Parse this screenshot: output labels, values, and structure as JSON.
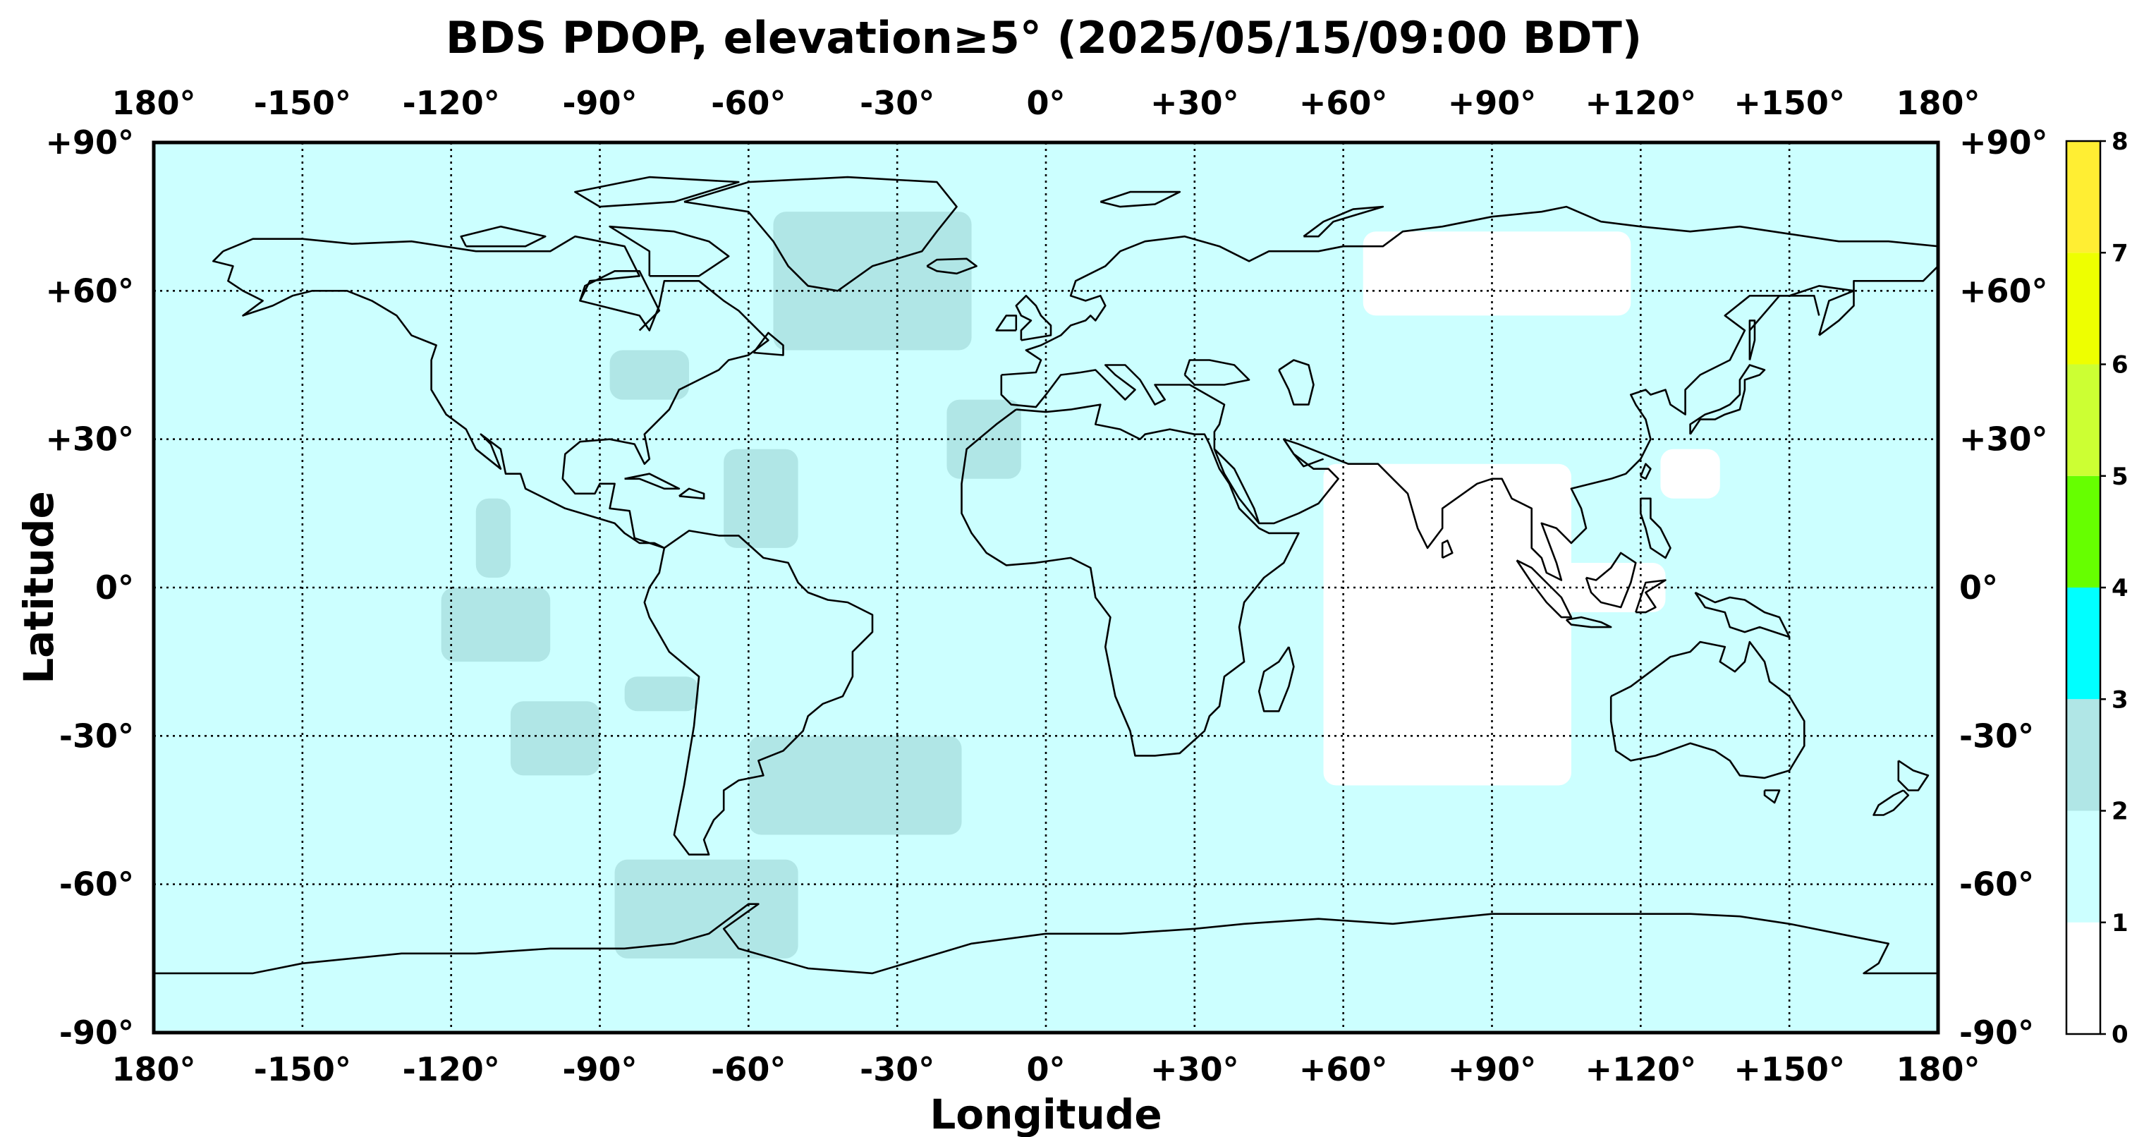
{
  "title": "BDS PDOP, elevation≥5° (2025/05/15/09:00 BDT)",
  "chart_data": {
    "type": "heatmap",
    "title": "BDS PDOP, elevation≥5° (2025/05/15/09:00 BDT)",
    "xlabel": "Longitude",
    "ylabel": "Latitude",
    "xlim": [
      -180,
      180
    ],
    "ylim": [
      -90,
      90
    ],
    "x_ticks": [
      -180,
      -150,
      -120,
      -90,
      -60,
      -30,
      0,
      30,
      60,
      90,
      120,
      150,
      180
    ],
    "x_tick_labels": [
      "180°",
      "-150°",
      "-120°",
      "-90°",
      "-60°",
      "-30°",
      "0°",
      "+30°",
      "+60°",
      "+90°",
      "+120°",
      "+150°",
      "180°"
    ],
    "y_ticks": [
      90,
      60,
      30,
      0,
      -30,
      -60,
      -90
    ],
    "y_tick_labels": [
      "+90°",
      "+60°",
      "+30°",
      "0°",
      "-30°",
      "-60°",
      "-90°"
    ],
    "grid": "dotted",
    "background_value_range": [
      1,
      2
    ],
    "colorbar": {
      "ticks": [
        0,
        1,
        2,
        3,
        4,
        5,
        6,
        7,
        8
      ],
      "tick_labels": [
        "0",
        "1",
        "2",
        "3",
        "4",
        "5",
        "6",
        "7",
        "8"
      ],
      "bins": [
        {
          "range": [
            0,
            1
          ],
          "color": "#ffffff"
        },
        {
          "range": [
            1,
            2
          ],
          "color": "#ccffff"
        },
        {
          "range": [
            2,
            3
          ],
          "color": "#b0e6e6"
        },
        {
          "range": [
            3,
            4
          ],
          "color": "#00ffff"
        },
        {
          "range": [
            4,
            5
          ],
          "color": "#66ff00"
        },
        {
          "range": [
            5,
            6
          ],
          "color": "#ccff33"
        },
        {
          "range": [
            6,
            7
          ],
          "color": "#eeff00"
        },
        {
          "range": [
            7,
            8
          ],
          "color": "#ffee33"
        }
      ]
    },
    "regions": [
      {
        "label": "PDOP 2–3 over Greenland / North Atlantic",
        "bin": [
          2,
          3
        ],
        "lon": [
          -55,
          -15
        ],
        "lat": [
          48,
          76
        ]
      },
      {
        "label": "PDOP 2–3 over Great Lakes",
        "bin": [
          2,
          3
        ],
        "lon": [
          -88,
          -72
        ],
        "lat": [
          38,
          48
        ]
      },
      {
        "label": "PDOP 2–3 North Atlantic",
        "bin": [
          2,
          3
        ],
        "lon": [
          -20,
          -5
        ],
        "lat": [
          22,
          38
        ]
      },
      {
        "label": "PDOP 2–3 Central Atlantic",
        "bin": [
          2,
          3
        ],
        "lon": [
          -65,
          -50
        ],
        "lat": [
          8,
          28
        ]
      },
      {
        "label": "PDOP 2–3 East Pacific near equator",
        "bin": [
          2,
          3
        ],
        "lon": [
          -122,
          -100
        ],
        "lat": [
          -15,
          0
        ]
      },
      {
        "label": "PDOP 2–3 South Pacific",
        "bin": [
          2,
          3
        ],
        "lon": [
          -108,
          -90
        ],
        "lat": [
          -38,
          -23
        ]
      },
      {
        "label": "PDOP 2–3 Eastern Pacific",
        "bin": [
          2,
          3
        ],
        "lon": [
          -115,
          -108
        ],
        "lat": [
          2,
          18
        ]
      },
      {
        "label": "PDOP 2–3 off Chile",
        "bin": [
          2,
          3
        ],
        "lon": [
          -85,
          -70
        ],
        "lat": [
          -25,
          -18
        ]
      },
      {
        "label": "PDOP 2–3 South Atlantic",
        "bin": [
          2,
          3
        ],
        "lon": [
          -60,
          -17
        ],
        "lat": [
          -50,
          -30
        ]
      },
      {
        "label": "PDOP 2–3 Drake Passage / Antarctic Peninsula",
        "bin": [
          2,
          3
        ],
        "lon": [
          -87,
          -50
        ],
        "lat": [
          -75,
          -55
        ]
      },
      {
        "label": "PDOP 0–1 Indian Ocean",
        "bin": [
          0,
          1
        ],
        "lon": [
          56,
          106
        ],
        "lat": [
          -40,
          25
        ]
      },
      {
        "label": "PDOP 0–1 Siberia",
        "bin": [
          0,
          1
        ],
        "lon": [
          64,
          118
        ],
        "lat": [
          55,
          72
        ]
      },
      {
        "label": "PDOP 0–1 Western Pacific",
        "bin": [
          0,
          1
        ],
        "lon": [
          124,
          136
        ],
        "lat": [
          18,
          28
        ]
      },
      {
        "label": "PDOP 0–1 Indonesia",
        "bin": [
          0,
          1
        ],
        "lon": [
          92,
          125
        ],
        "lat": [
          -5,
          5
        ]
      }
    ]
  }
}
